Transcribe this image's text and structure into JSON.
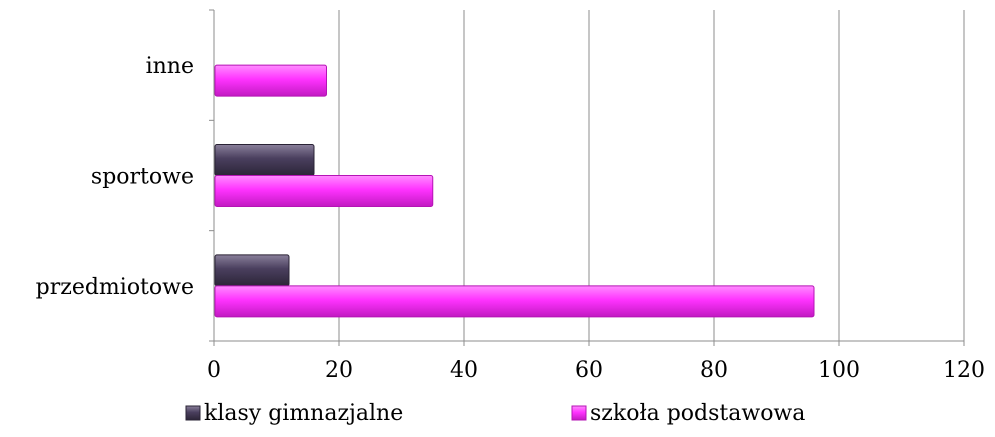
{
  "chart_data": {
    "type": "bar",
    "orientation": "horizontal",
    "categories": [
      "przedmiotowe",
      "sportowe",
      "inne"
    ],
    "series": [
      {
        "name": "klasy gimnazjalne",
        "values": [
          12,
          16,
          0
        ],
        "color": "#4a3f5e"
      },
      {
        "name": "szkoła podstawowa",
        "values": [
          96,
          35,
          18
        ],
        "color": "#ff33ff"
      }
    ],
    "xlim": [
      0,
      120
    ],
    "xticks": [
      0,
      20,
      40,
      60,
      80,
      100,
      120
    ],
    "grid": true,
    "legend_position": "bottom"
  }
}
